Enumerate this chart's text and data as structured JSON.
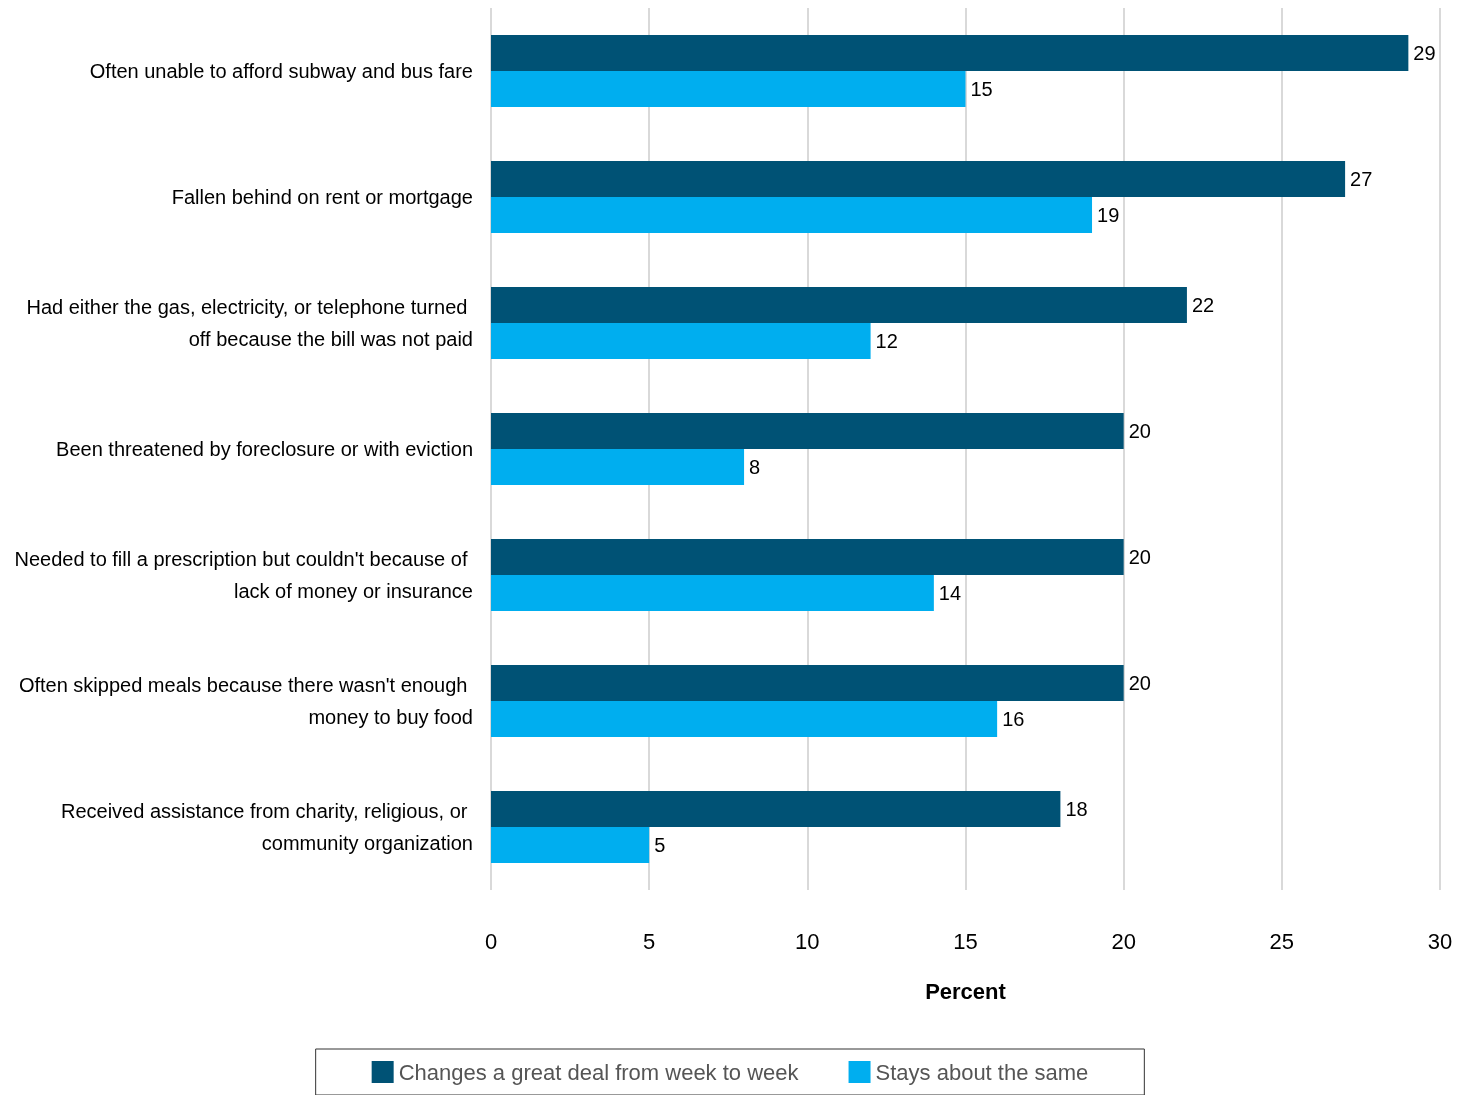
{
  "chart_data": {
    "type": "bar",
    "orientation": "horizontal",
    "categories": [
      "Often unable to afford subway and bus fare",
      "Fallen behind on rent or mortgage",
      "Had either the gas, electricity, or telephone turned off because the bill was not paid",
      "Been threatened by foreclosure or with eviction",
      "Needed to fill a prescription but couldn't because of lack of money or insurance",
      "Often skipped meals because there wasn't enough money to buy food",
      "Received assistance from charity, religious, or community organization"
    ],
    "series": [
      {
        "name": "Changes a great deal from week to week",
        "color": "#005275",
        "values": [
          29,
          27,
          22,
          20,
          20,
          20,
          18
        ]
      },
      {
        "name": "Stays about the same",
        "color": "#00aeef",
        "values": [
          15,
          19,
          12,
          8,
          14,
          16,
          5
        ]
      }
    ],
    "xlim": [
      0,
      30
    ],
    "xticks": [
      0,
      5,
      10,
      15,
      20,
      25,
      30
    ],
    "xlabel": "Percent",
    "grid": "x",
    "legend": "bottom",
    "data_labels": true
  }
}
